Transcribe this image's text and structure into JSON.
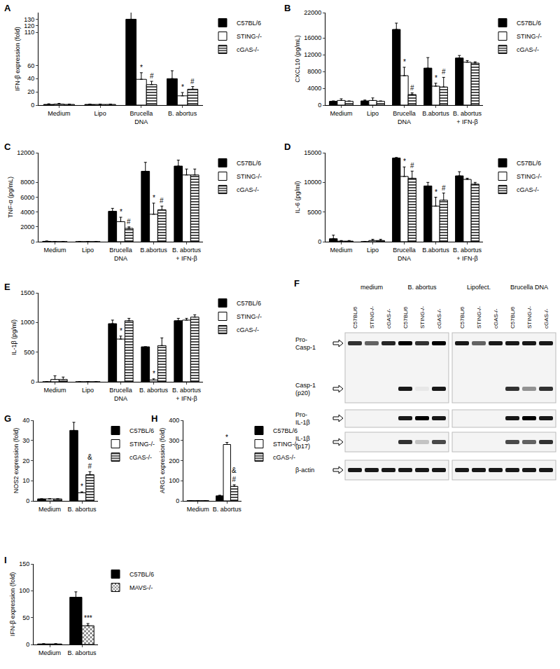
{
  "chart_data": [
    {
      "panel": "A",
      "type": "bar",
      "ylabel": "IFN-β expression (fold)",
      "categories": [
        "Medium",
        "Lipo",
        "Brucella\nDNA",
        "B. abortus"
      ],
      "ylim": [
        0,
        140
      ],
      "yticks": [
        0,
        20,
        40,
        60,
        110,
        120,
        130
      ],
      "grid": false,
      "legend": "right",
      "series": [
        {
          "name": "C57BL/6",
          "color": "#000000",
          "marker": "solid",
          "values": [
            1,
            1,
            130,
            40
          ],
          "errors": [
            1,
            0.5,
            15,
            12
          ],
          "signif": [
            null,
            null,
            null,
            null
          ]
        },
        {
          "name": "STING-/-",
          "color": "#ffffff",
          "marker": "solid",
          "values": [
            1.5,
            1,
            39,
            14
          ],
          "errors": [
            1,
            0.5,
            10,
            5
          ],
          "signif": [
            null,
            null,
            "*",
            "*"
          ]
        },
        {
          "name": "cGAS-/-",
          "color": "#ffffff",
          "marker": "hatched",
          "values": [
            1,
            1,
            31,
            24
          ],
          "errors": [
            0.5,
            0.5,
            5,
            4
          ],
          "signif": [
            null,
            null,
            "#",
            "#"
          ]
        }
      ]
    },
    {
      "panel": "B",
      "type": "bar",
      "ylabel": "CXCL10 (pg/mL)",
      "categories": [
        "Medium",
        "Lipo",
        "Brucella\nDNA",
        "B.abortus",
        "B. abortus\n+ IFN-β"
      ],
      "ylim": [
        0,
        22000
      ],
      "yticks": [
        0,
        4000,
        8000,
        12000,
        16000,
        22000
      ],
      "grid": false,
      "legend": "right",
      "series": [
        {
          "name": "C57BL/6",
          "color": "#000000",
          "marker": "solid",
          "values": [
            900,
            1000,
            18000,
            8800,
            11200
          ],
          "errors": [
            100,
            200,
            1500,
            2500,
            600
          ],
          "signif": [
            null,
            null,
            null,
            null,
            null
          ]
        },
        {
          "name": "STING-/-",
          "color": "#ffffff",
          "marker": "solid",
          "values": [
            1100,
            1100,
            7000,
            4500,
            10200
          ],
          "errors": [
            400,
            600,
            2000,
            700,
            400
          ],
          "signif": [
            null,
            null,
            "*",
            "*",
            null
          ]
        },
        {
          "name": "cGAS-/-",
          "color": "#ffffff",
          "marker": "hatched",
          "values": [
            900,
            900,
            2500,
            4300,
            10000
          ],
          "errors": [
            100,
            100,
            400,
            2300,
            300
          ],
          "signif": [
            null,
            null,
            "#",
            "#",
            null
          ]
        }
      ]
    },
    {
      "panel": "C",
      "type": "bar",
      "ylabel": "TNF-α (pg/mL)",
      "categories": [
        "Medium",
        "Lipo",
        "Brucella\nDNA",
        "B.abortus",
        "B. abortus\n+ IFN-β"
      ],
      "ylim": [
        0,
        12000
      ],
      "yticks": [
        0,
        2000,
        4000,
        6000,
        8000,
        12000
      ],
      "grid": false,
      "legend": "right",
      "series": [
        {
          "name": "C57BL/6",
          "color": "#000000",
          "marker": "solid",
          "values": [
            50,
            0,
            4100,
            9500,
            10200
          ],
          "errors": [
            50,
            0,
            400,
            1200,
            800
          ],
          "signif": [
            null,
            null,
            null,
            null,
            null
          ]
        },
        {
          "name": "STING-/-",
          "color": "#ffffff",
          "marker": "solid",
          "values": [
            0,
            0,
            2700,
            3700,
            9000
          ],
          "errors": [
            0,
            0,
            600,
            1500,
            800
          ],
          "signif": [
            null,
            null,
            "*",
            "*",
            null
          ]
        },
        {
          "name": "cGAS-/-",
          "color": "#ffffff",
          "marker": "hatched",
          "values": [
            0,
            0,
            1800,
            4300,
            9000
          ],
          "errors": [
            0,
            0,
            200,
            500,
            800
          ],
          "signif": [
            null,
            null,
            "#",
            "#",
            null
          ]
        }
      ]
    },
    {
      "panel": "D",
      "type": "bar",
      "ylabel": "IL-6 (pg/ml)",
      "categories": [
        "Medium",
        "Lipo",
        "Brucella\nDNA",
        "B.abortus",
        "B. abortus\n+ IFN-β"
      ],
      "ylim": [
        0,
        15000
      ],
      "yticks": [
        0,
        5000,
        10000,
        15000
      ],
      "grid": false,
      "legend": "right",
      "series": [
        {
          "name": "C57BL/6",
          "color": "#000000",
          "marker": "solid",
          "values": [
            500,
            0,
            14100,
            9400,
            11100
          ],
          "errors": [
            600,
            0,
            100,
            600,
            700
          ],
          "signif": [
            null,
            null,
            null,
            null,
            null
          ]
        },
        {
          "name": "STING-/-",
          "color": "#ffffff",
          "marker": "solid",
          "values": [
            100,
            200,
            11000,
            6000,
            10500
          ],
          "errors": [
            100,
            200,
            1600,
            1500,
            200
          ],
          "signif": [
            null,
            null,
            "*",
            "*",
            null
          ]
        },
        {
          "name": "cGAS-/-",
          "color": "#ffffff",
          "marker": "hatched",
          "values": [
            100,
            200,
            10700,
            7000,
            9700
          ],
          "errors": [
            100,
            200,
            1200,
            1200,
            300
          ],
          "signif": [
            null,
            null,
            "#",
            "#",
            null
          ]
        }
      ]
    },
    {
      "panel": "E",
      "type": "bar",
      "ylabel": "IL-1β (pg/ml)",
      "categories": [
        "Medium",
        "Lipo",
        "Brucella\nDNA",
        "B. abortus",
        "B. abortus\n+ IFN-β"
      ],
      "ylim": [
        0,
        1500
      ],
      "yticks": [
        0,
        500,
        1000,
        1500
      ],
      "grid": false,
      "legend": "right",
      "series": [
        {
          "name": "C57BL/6",
          "color": "#000000",
          "marker": "solid",
          "values": [
            0,
            0,
            980,
            590,
            1030
          ],
          "errors": [
            0,
            0,
            60,
            0,
            40
          ],
          "signif": [
            null,
            null,
            null,
            null,
            null
          ]
        },
        {
          "name": "STING-/-",
          "color": "#ffffff",
          "marker": "solid",
          "values": [
            40,
            0,
            720,
            30,
            1040
          ],
          "errors": [
            60,
            0,
            50,
            20,
            30
          ],
          "signif": [
            null,
            null,
            "*",
            "*",
            null
          ]
        },
        {
          "name": "cGAS-/-",
          "color": "#ffffff",
          "marker": "hatched",
          "values": [
            40,
            0,
            1030,
            610,
            1090
          ],
          "errors": [
            40,
            0,
            40,
            130,
            40
          ],
          "signif": [
            null,
            null,
            null,
            null,
            null
          ]
        }
      ]
    },
    {
      "panel": "G",
      "type": "bar",
      "ylabel": "NOS2 expression (fold)",
      "categories": [
        "Medium",
        "B. abortus"
      ],
      "ylim": [
        0,
        40
      ],
      "yticks": [
        0,
        10,
        20,
        30,
        40
      ],
      "grid": false,
      "legend": "right",
      "series": [
        {
          "name": "C57BL/6",
          "color": "#000000",
          "marker": "solid",
          "values": [
            1,
            35
          ],
          "errors": [
            0,
            4
          ],
          "signif": [
            null,
            null
          ]
        },
        {
          "name": "STING-/-",
          "color": "#ffffff",
          "marker": "solid",
          "values": [
            1,
            4
          ],
          "errors": [
            0,
            0.5
          ],
          "signif": [
            null,
            "*"
          ]
        },
        {
          "name": "cGAS-/-",
          "color": "#ffffff",
          "marker": "hatched",
          "values": [
            1,
            13
          ],
          "errors": [
            0,
            1.5
          ],
          "signif": [
            null,
            "&\n#"
          ]
        }
      ]
    },
    {
      "panel": "H",
      "type": "bar",
      "ylabel": "ARG1 expression (fold)",
      "categories": [
        "Medium",
        "B. abortus"
      ],
      "ylim": [
        0,
        400
      ],
      "yticks": [
        0,
        100,
        200,
        300,
        400
      ],
      "grid": false,
      "legend": "right",
      "series": [
        {
          "name": "C57BL/6",
          "color": "#000000",
          "marker": "solid",
          "values": [
            1,
            25
          ],
          "errors": [
            0,
            3
          ],
          "signif": [
            null,
            null
          ]
        },
        {
          "name": "STING-/-",
          "color": "#ffffff",
          "marker": "solid",
          "values": [
            1,
            280
          ],
          "errors": [
            0,
            10
          ],
          "signif": [
            null,
            "*"
          ]
        },
        {
          "name": "cGAS-/-",
          "color": "#ffffff",
          "marker": "hatched",
          "values": [
            1,
            72
          ],
          "errors": [
            0,
            8
          ],
          "signif": [
            null,
            "&\n#"
          ]
        }
      ]
    },
    {
      "panel": "I",
      "type": "bar",
      "ylabel": "IFN-β expression (fold)",
      "categories": [
        "Medium",
        "B. abortus"
      ],
      "ylim": [
        0,
        150
      ],
      "yticks": [
        0,
        50,
        100,
        150
      ],
      "grid": false,
      "legend": "right",
      "series": [
        {
          "name": "C57BL/6",
          "color": "#000000",
          "marker": "solid",
          "values": [
            1,
            88
          ],
          "errors": [
            0.5,
            10
          ],
          "signif": [
            null,
            null
          ]
        },
        {
          "name": "MAVS-/-",
          "color": "#ffffff",
          "marker": "checkered",
          "values": [
            1,
            35
          ],
          "errors": [
            0.5,
            4
          ],
          "signif": [
            null,
            "***"
          ]
        }
      ]
    }
  ],
  "blot": {
    "panel": "F",
    "groups": [
      {
        "label": "medium",
        "lanes": [
          "C57BL/6",
          "STING-/-",
          "cGAS-/-"
        ]
      },
      {
        "label": "B. abortus",
        "lanes": [
          "C57BL/6",
          "STING-/-",
          "cGAS-/-"
        ]
      },
      {
        "label": "Lipofect.",
        "lanes": [
          "C57BL/6",
          "STING-/-",
          "cGAS-/-"
        ]
      },
      {
        "label": "Brucella DNA",
        "lanes": [
          "C57BL/6",
          "STING-/-",
          "cGAS-/-"
        ]
      }
    ],
    "rows": [
      {
        "label": "Pro-\nCasp-1",
        "bands": [
          0.8,
          0.6,
          0.85,
          1,
          0.8,
          1,
          0.9,
          0.6,
          0.9,
          0.9,
          0.9,
          0.9
        ]
      },
      {
        "label": "Casp-1\n(p20)",
        "bands": [
          0,
          0,
          0,
          0.9,
          0.05,
          0.9,
          0,
          0,
          0,
          0.8,
          0.4,
          0.8
        ]
      },
      {
        "label": "Pro-\nIL-1β",
        "bands": [
          0,
          0,
          0,
          0.9,
          1,
          0.9,
          0,
          0,
          0,
          0.9,
          1,
          0.9
        ]
      },
      {
        "label": "IL-1β\n(p17)",
        "bands": [
          0,
          0,
          0,
          0.8,
          0.2,
          0.7,
          0,
          0,
          0,
          0.7,
          0.6,
          0.8
        ]
      },
      {
        "label": "β-actin",
        "bands": [
          0.9,
          0.9,
          0.9,
          0.9,
          0.9,
          0.9,
          0.9,
          0.9,
          0.9,
          0.9,
          0.9,
          0.9
        ]
      }
    ]
  }
}
